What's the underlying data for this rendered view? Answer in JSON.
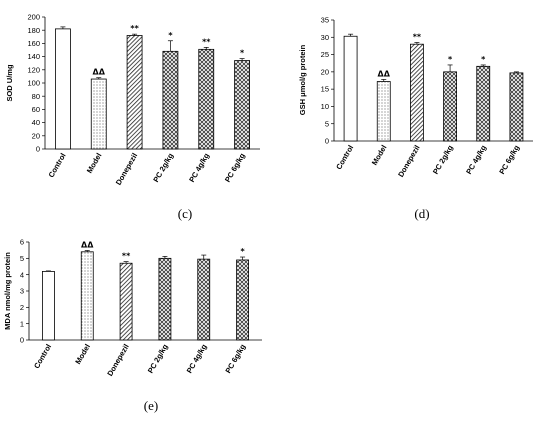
{
  "chart_data": [
    {
      "type": "bar",
      "panel": "(c)",
      "ylabel": "SOD U/mg",
      "ylim": [
        0,
        200
      ],
      "yticks": [
        0,
        20,
        40,
        60,
        80,
        100,
        120,
        140,
        160,
        180,
        200
      ],
      "categories": [
        "Control",
        "Model",
        "Donepezil",
        "PC 2g/kg",
        "PC 4g/kg",
        "PC 6g/kg"
      ],
      "series": [
        {
          "values": [
            182,
            106,
            172,
            148,
            151,
            134
          ]
        }
      ],
      "errors": [
        3,
        2,
        2,
        16,
        3,
        3
      ],
      "significance": [
        "",
        "ΔΔ",
        "**",
        "*",
        "**",
        "*"
      ]
    },
    {
      "type": "bar",
      "panel": "(d)",
      "ylabel": "GSH μmol/g protein",
      "ylim": [
        0,
        35
      ],
      "yticks": [
        0,
        5,
        10,
        15,
        20,
        25,
        30,
        35
      ],
      "categories": [
        "Control",
        "Model",
        "Donepezil",
        "PC 2g/kg",
        "PC 4g/kg",
        "PC 6g/kg"
      ],
      "series": [
        {
          "values": [
            30.3,
            17.2,
            28.0,
            20.0,
            21.6,
            19.7
          ]
        }
      ],
      "errors": [
        0.6,
        0.6,
        0.5,
        2.0,
        0.4,
        0.3
      ],
      "significance": [
        "",
        "ΔΔ",
        "**",
        "*",
        "*",
        ""
      ]
    },
    {
      "type": "bar",
      "panel": "(e)",
      "ylabel": "MDA nmol/mg protein",
      "ylim": [
        0,
        6
      ],
      "yticks": [
        0,
        1,
        2,
        3,
        4,
        5,
        6
      ],
      "categories": [
        "Control",
        "Model",
        "Donepezil",
        "PC 2g/kg",
        "PC 4g/kg",
        "PC 6g/kg"
      ],
      "series": [
        {
          "values": [
            4.2,
            5.4,
            4.7,
            5.0,
            4.95,
            4.9
          ]
        }
      ],
      "errors": [
        0.03,
        0.08,
        0.1,
        0.12,
        0.25,
        0.18
      ],
      "significance": [
        "",
        "ΔΔ",
        "**",
        "",
        "",
        "*"
      ]
    }
  ],
  "bar_styles": [
    "white",
    "dotted",
    "diagonal",
    "crosshatch",
    "crosshatch",
    "crosshatch"
  ]
}
